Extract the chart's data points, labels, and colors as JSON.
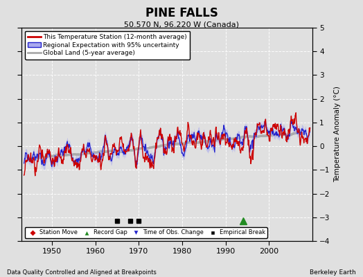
{
  "title": "PINE FALLS",
  "subtitle": "50.570 N, 96.220 W (Canada)",
  "ylabel": "Temperature Anomaly (°C)",
  "footer_left": "Data Quality Controlled and Aligned at Breakpoints",
  "footer_right": "Berkeley Earth",
  "xlim": [
    1943,
    2010
  ],
  "ylim": [
    -4,
    5
  ],
  "yticks": [
    -4,
    -3,
    -2,
    -1,
    0,
    1,
    2,
    3,
    4,
    5
  ],
  "xticks": [
    1950,
    1960,
    1970,
    1980,
    1990,
    2000
  ],
  "background_color": "#e0e0e0",
  "plot_bg_color": "#e0e0e0",
  "station_color": "#cc0000",
  "regional_color": "#2222cc",
  "uncertainty_color": "#aaaaee",
  "global_color": "#aaaaaa",
  "grid_color": "#ffffff",
  "seed": 17,
  "empirical_breaks": [
    1965,
    1968,
    1970
  ],
  "record_gap": [
    1994
  ],
  "time_obs_change": [],
  "station_move": []
}
